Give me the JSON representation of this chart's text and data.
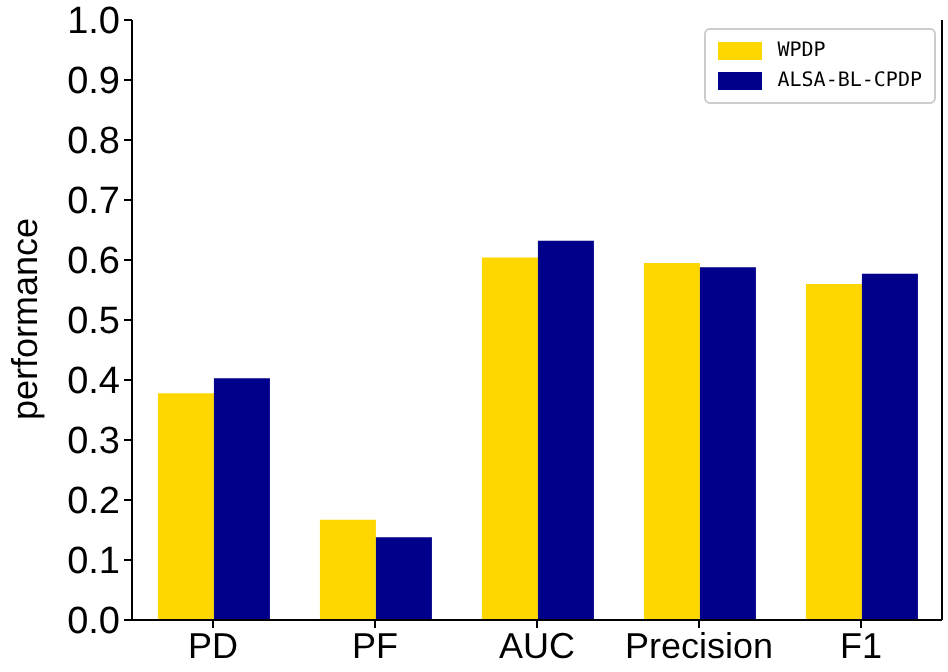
{
  "chart_data": {
    "type": "bar",
    "ylabel": "performance",
    "categories": [
      "PD",
      "PF",
      "AUC",
      "Precision",
      "F1"
    ],
    "series": [
      {
        "name": "WPDP",
        "color": "#ffd700",
        "values": [
          0.378,
          0.167,
          0.604,
          0.595,
          0.56
        ]
      },
      {
        "name": "ALSA-BL-CPDP",
        "color": "#00008b",
        "values": [
          0.403,
          0.138,
          0.632,
          0.588,
          0.577
        ]
      }
    ],
    "ylim": [
      0,
      1
    ],
    "yticks": [
      {
        "value": 0,
        "label": "0.0"
      },
      {
        "value": 0.1,
        "label": "0.1"
      },
      {
        "value": 0.2,
        "label": "0.2"
      },
      {
        "value": 0.3,
        "label": "0.3"
      },
      {
        "value": 0.4,
        "label": "0.4"
      },
      {
        "value": 0.5,
        "label": "0.5"
      },
      {
        "value": 0.6,
        "label": "0.6"
      },
      {
        "value": 0.7,
        "label": "0.7"
      },
      {
        "value": 0.8,
        "label": "0.8"
      },
      {
        "value": 0.9,
        "label": "0.9"
      },
      {
        "value": 1,
        "label": "1.0"
      }
    ],
    "grid": false,
    "legend": "top right"
  }
}
